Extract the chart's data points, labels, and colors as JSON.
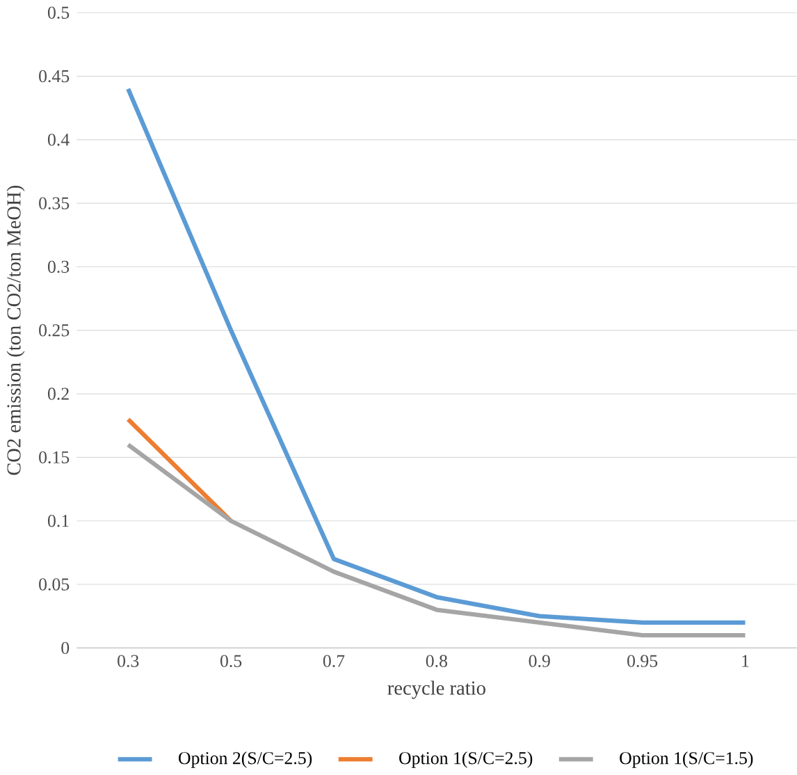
{
  "chart_data": {
    "type": "line",
    "xlabel": "recycle ratio",
    "ylabel": "CO2 emission (ton CO2/ton MeOH)",
    "categories": [
      "0.3",
      "0.5",
      "0.7",
      "0.8",
      "0.9",
      "0.95",
      "1"
    ],
    "series": [
      {
        "name": "Option 2(S/C=2.5)",
        "color": "#5b9bd5",
        "values": [
          0.44,
          0.25,
          0.07,
          0.04,
          0.025,
          0.02,
          0.02
        ]
      },
      {
        "name": "Option 1(S/C=2.5)",
        "color": "#ed7d31",
        "values": [
          0.18,
          0.1,
          null,
          null,
          null,
          null,
          null
        ]
      },
      {
        "name": "Option 1(S/C=1.5)",
        "color": "#a5a5a5",
        "values": [
          0.16,
          0.1,
          0.06,
          0.03,
          0.02,
          0.01,
          0.01
        ]
      }
    ],
    "ylim": [
      0,
      0.5
    ],
    "yticks": [
      0,
      0.05,
      0.1,
      0.15,
      0.2,
      0.25,
      0.3,
      0.35,
      0.4,
      0.45,
      0.5
    ],
    "grid": "y",
    "legend": "bottom",
    "marker": "none",
    "line_style": "solid"
  }
}
